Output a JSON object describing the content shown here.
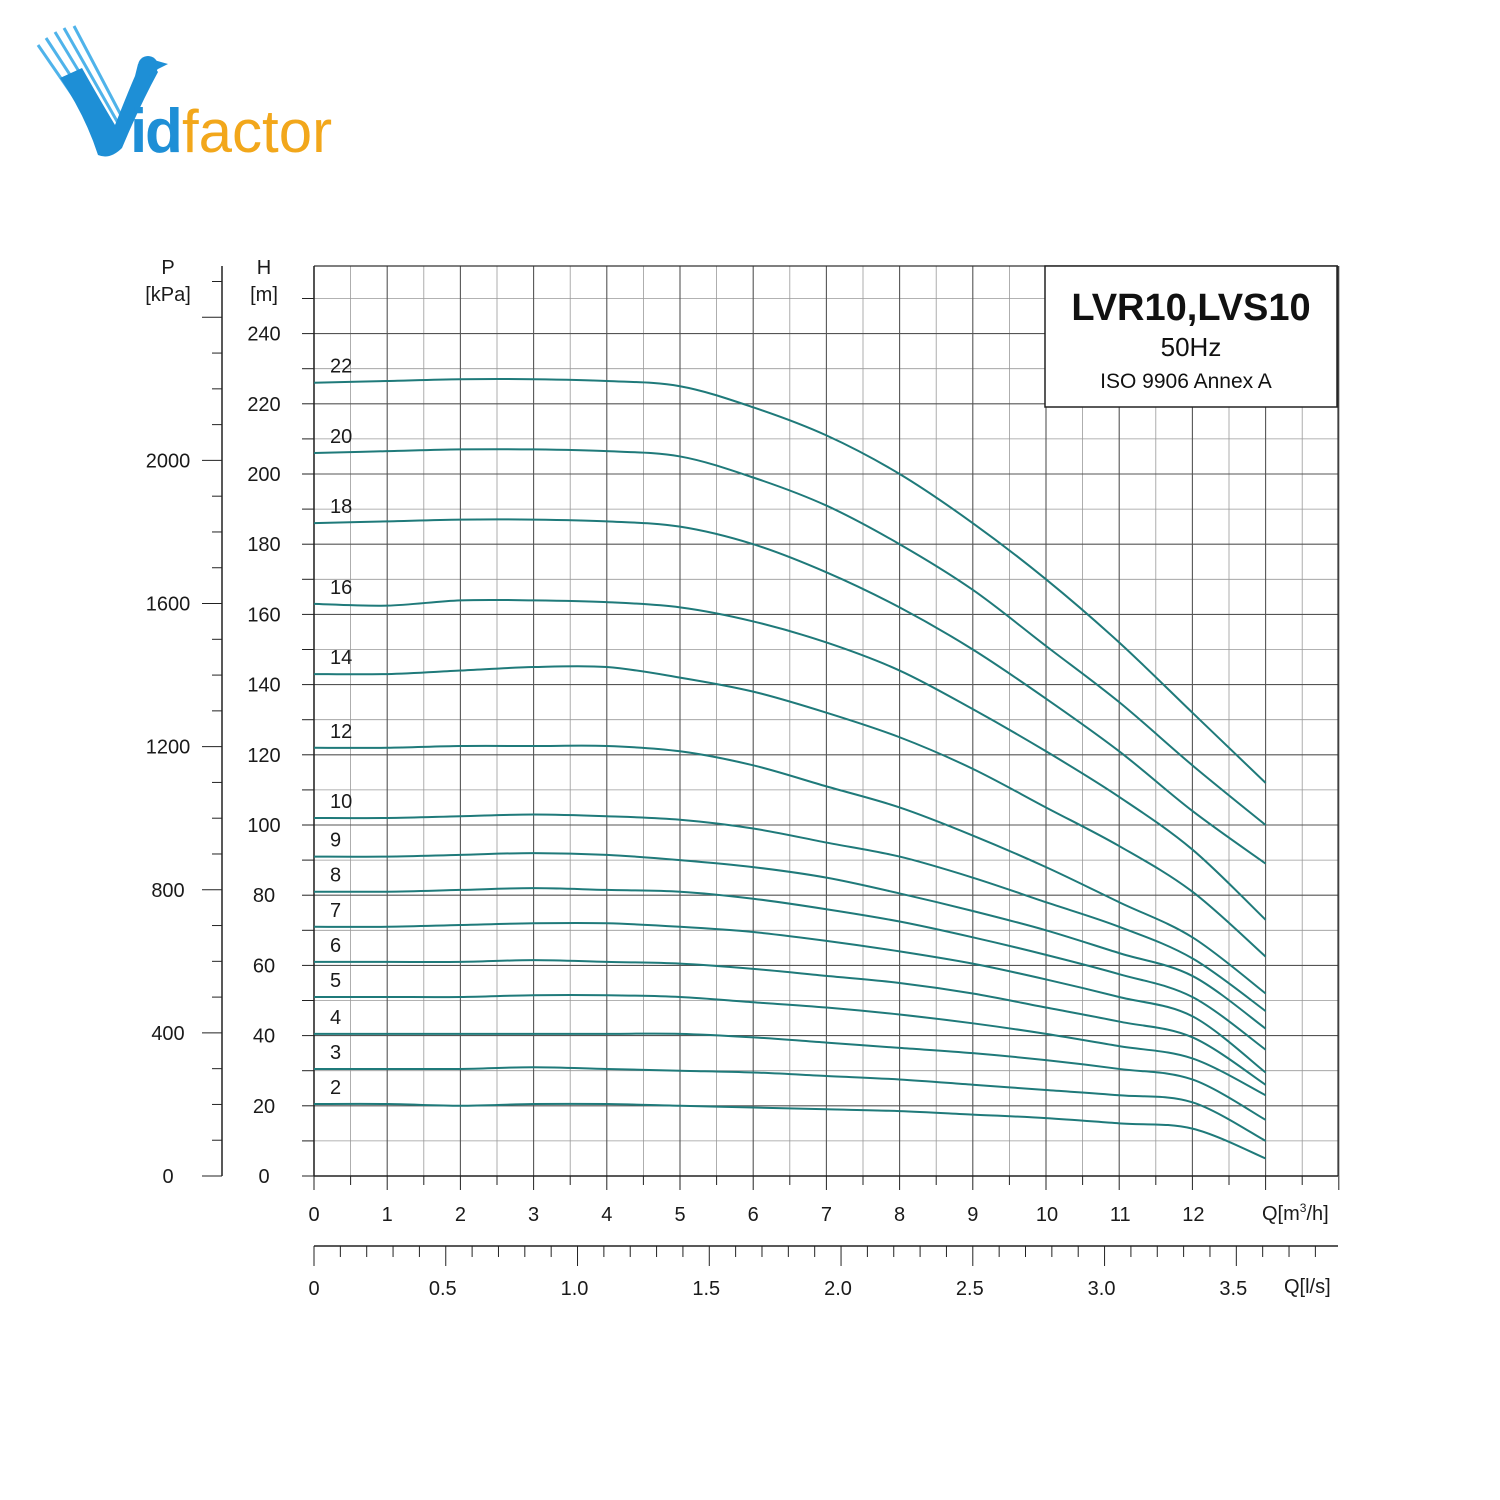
{
  "brand": {
    "name": "Vidfactor",
    "colors": {
      "blue": "#1e8fd6",
      "orange": "#f2a71b"
    }
  },
  "chart_data": {
    "type": "line",
    "title": "LVR10,LVS10",
    "subtitle": "50Hz",
    "note": "ISO 9906 Annex A",
    "xlabel": "Q[m³/h]",
    "xlabel_secondary": "Q[l/s]",
    "ylabel": "H [m]",
    "ylabel_secondary": "P [kPa]",
    "y_title_top": "H",
    "y_unit": "[m]",
    "p_title_top": "P",
    "p_unit": "[kPa]",
    "x_title_main": "Q[m",
    "x_title_sup": "3",
    "x_title_end": "/h]",
    "x_title_ls": "Q[l/s]",
    "xlim": [
      0,
      14
    ],
    "ylim": [
      0,
      260
    ],
    "grid": true,
    "line_color": "#1f7a7a",
    "x_ticks": [
      "0",
      "1",
      "2",
      "3",
      "4",
      "5",
      "6",
      "7",
      "8",
      "9",
      "10",
      "11",
      "12"
    ],
    "y_ticks": [
      "0",
      "20",
      "40",
      "60",
      "80",
      "100",
      "120",
      "140",
      "160",
      "180",
      "200",
      "220",
      "240"
    ],
    "p_ticks": [
      "0",
      "400",
      "800",
      "1200",
      "1600",
      "2000"
    ],
    "ls_ticks": [
      "0",
      "0.5",
      "1.0",
      "1.5",
      "2.0",
      "2.5",
      "3.0",
      "3.5"
    ],
    "x": [
      0,
      1,
      2,
      3,
      4,
      5,
      6,
      7,
      8,
      9,
      10,
      11,
      12,
      13
    ],
    "series": [
      {
        "name": "22",
        "values": [
          226,
          226.5,
          227,
          227,
          226.5,
          225,
          219,
          211,
          200,
          186,
          170,
          152,
          132,
          112
        ]
      },
      {
        "name": "20",
        "values": [
          206,
          206.5,
          207,
          207,
          206.5,
          205,
          199,
          191,
          180,
          167,
          151,
          135,
          117,
          100
        ]
      },
      {
        "name": "18",
        "values": [
          186,
          186.5,
          187,
          187,
          186.5,
          185,
          180,
          172,
          162,
          150,
          136,
          121,
          104,
          89
        ]
      },
      {
        "name": "16",
        "values": [
          163,
          162.5,
          164,
          164,
          163.5,
          162,
          158,
          152,
          144,
          133,
          121,
          108,
          93,
          73
        ]
      },
      {
        "name": "14",
        "values": [
          143,
          143,
          144,
          145,
          145,
          142,
          138,
          132,
          125,
          116,
          105,
          94,
          81,
          62.5
        ]
      },
      {
        "name": "12",
        "values": [
          122,
          122,
          122.5,
          122.5,
          122.5,
          121,
          117,
          111,
          105,
          97,
          88,
          78,
          68,
          52
        ]
      },
      {
        "name": "10",
        "values": [
          102,
          102,
          102.5,
          103,
          102.5,
          101.5,
          99,
          95,
          91,
          85,
          78,
          71,
          62,
          47
        ]
      },
      {
        "name": "9",
        "values": [
          91,
          91,
          91.5,
          92,
          91.5,
          90,
          88,
          85,
          80.5,
          75.5,
          70,
          63.5,
          57,
          42
        ]
      },
      {
        "name": "8",
        "values": [
          81,
          81,
          81.5,
          82,
          81.5,
          81,
          79,
          76,
          72.5,
          68,
          63,
          57.5,
          51,
          36
        ]
      },
      {
        "name": "7",
        "values": [
          71,
          71,
          71.5,
          72,
          72,
          71,
          69.5,
          67,
          64,
          60.5,
          56,
          51,
          45.5,
          29.5
        ]
      },
      {
        "name": "6",
        "values": [
          61,
          61,
          61,
          61.5,
          61,
          60.5,
          59,
          57,
          55,
          52,
          48,
          44,
          39.5,
          26
        ]
      },
      {
        "name": "5",
        "values": [
          51,
          51,
          51,
          51.5,
          51.5,
          51,
          49.5,
          48,
          46,
          43.5,
          40.5,
          37,
          33.5,
          23
        ]
      },
      {
        "name": "4",
        "values": [
          40.5,
          40.5,
          40.5,
          40.5,
          40.5,
          40.5,
          39.5,
          38,
          36.5,
          35,
          33,
          30.5,
          27.5,
          16
        ]
      },
      {
        "name": "3",
        "values": [
          30.5,
          30.5,
          30.5,
          31,
          30.5,
          30,
          29.5,
          28.5,
          27.5,
          26,
          24.5,
          23,
          21,
          10
        ]
      },
      {
        "name": "2",
        "values": [
          20.5,
          20.5,
          20,
          20.5,
          20.5,
          20,
          19.5,
          19,
          18.5,
          17.5,
          16.5,
          15,
          13.5,
          5
        ]
      }
    ]
  }
}
